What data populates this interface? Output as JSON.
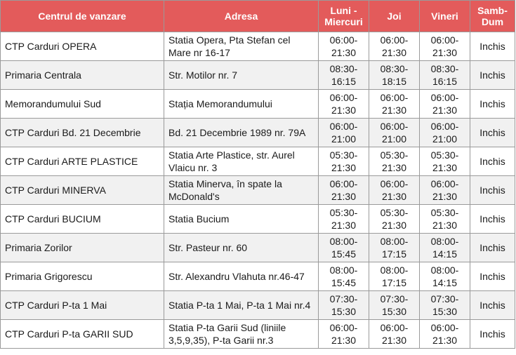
{
  "headers": {
    "centru": "Centrul de vanzare",
    "adresa": "Adresa",
    "luni": "Luni - Miercuri",
    "joi": "Joi",
    "vineri": "Vineri",
    "weekend": "Samb-Dum"
  },
  "rows": [
    {
      "centru": "CTP Carduri OPERA",
      "adresa": "Statia Opera, Pta Stefan cel Mare nr 16-17",
      "luni": "06:00-21:30",
      "joi": "06:00-21:30",
      "vineri": "06:00-21:30",
      "weekend": "Inchis"
    },
    {
      "centru": "Primaria Centrala",
      "adresa": "Str. Motilor nr. 7",
      "luni": "08:30-16:15",
      "joi": "08:30-18:15",
      "vineri": "08:30-16:15",
      "weekend": "Inchis"
    },
    {
      "centru": "Memorandumului Sud",
      "adresa": "Stația Memorandumului",
      "luni": "06:00-21:30",
      "joi": "06:00-21:30",
      "vineri": "06:00-21:30",
      "weekend": "Inchis"
    },
    {
      "centru": "CTP Carduri Bd. 21 Decembrie",
      "adresa": "Bd. 21 Decembrie 1989 nr. 79A",
      "luni": "06:00-21:00",
      "joi": "06:00-21:00",
      "vineri": "06:00-21:00",
      "weekend": "Inchis"
    },
    {
      "centru": "CTP Carduri ARTE PLASTICE",
      "adresa": "Statia Arte Plastice, str. Aurel Vlaicu nr. 3",
      "luni": "05:30-21:30",
      "joi": "05:30-21:30",
      "vineri": "05:30-21:30",
      "weekend": "Inchis"
    },
    {
      "centru": "CTP Carduri MINERVA",
      "adresa": "Statia Minerva, în spate la McDonald's",
      "luni": "06:00-21:30",
      "joi": "06:00-21:30",
      "vineri": "06:00-21:30",
      "weekend": "Inchis"
    },
    {
      "centru": "CTP Carduri BUCIUM",
      "adresa": "Statia Bucium",
      "luni": "05:30-21:30",
      "joi": "05:30-21:30",
      "vineri": "05:30-21:30",
      "weekend": "Inchis"
    },
    {
      "centru": "Primaria Zorilor",
      "adresa": "Str. Pasteur nr. 60",
      "luni": "08:00-15:45",
      "joi": "08:00-17:15",
      "vineri": "08:00-14:15",
      "weekend": "Inchis"
    },
    {
      "centru": "Primaria Grigorescu",
      "adresa": "Str. Alexandru Vlahuta nr.46-47",
      "luni": "08:00-15:45",
      "joi": "08:00-17:15",
      "vineri": "08:00-14:15",
      "weekend": "Inchis"
    },
    {
      "centru": "CTP Carduri P-ta 1 Mai",
      "adresa": "Statia P-ta 1 Mai, P-ta 1 Mai nr.4",
      "luni": "07:30-15:30",
      "joi": "07:30-15:30",
      "vineri": "07:30-15:30",
      "weekend": "Inchis"
    },
    {
      "centru": "CTP Carduri P-ta GARII SUD",
      "adresa": "Statia P-ta Garii Sud (liniile 3,5,9,35), P-ta Garii nr.3",
      "luni": "06:00-21:30",
      "joi": "06:00-21:30",
      "vineri": "06:00-21:30",
      "weekend": "Inchis"
    }
  ]
}
